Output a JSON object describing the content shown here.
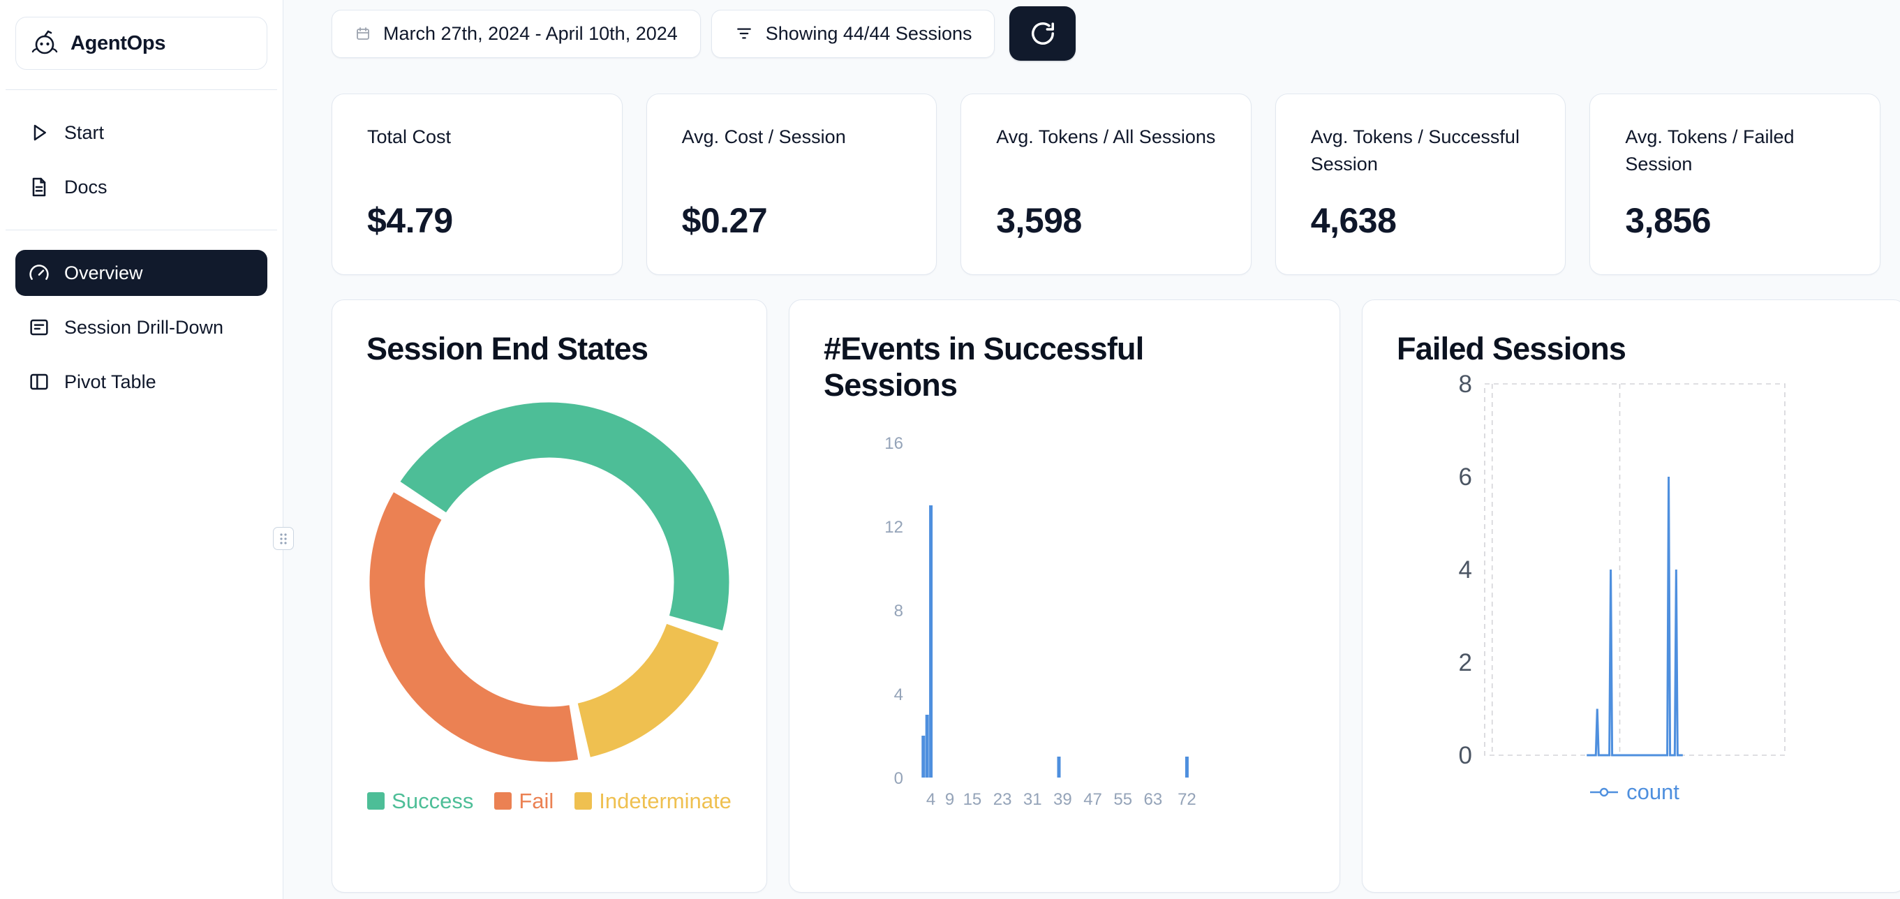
{
  "app": {
    "name": "AgentOps"
  },
  "colors": {
    "accent_dark": "#111a2c",
    "success_green": "#4dbe97",
    "fail_orange": "#eb8153",
    "indeterminate_yellow": "#efc050",
    "chart_blue": "#4e8fde",
    "card_border": "#e2e8f0",
    "page_bg": "#f8fafc"
  },
  "sidebar": {
    "nav_top": [
      {
        "label": "Start"
      },
      {
        "label": "Docs"
      }
    ],
    "nav_main": [
      {
        "label": "Overview",
        "active": true
      },
      {
        "label": "Session Drill-Down",
        "active": false
      },
      {
        "label": "Pivot Table",
        "active": false
      }
    ]
  },
  "toolbar": {
    "date_range": "March 27th, 2024 - April 10th, 2024",
    "sessions_filter": "Showing 44/44 Sessions"
  },
  "stats": [
    {
      "label": "Total Cost",
      "value": "$4.79"
    },
    {
      "label": "Avg. Cost / Session",
      "value": "$0.27"
    },
    {
      "label": "Avg. Tokens / All Sessions",
      "value": "3,598"
    },
    {
      "label": "Avg. Tokens / Successful Session",
      "value": "4,638"
    },
    {
      "label": "Avg. Tokens / Failed Session",
      "value": "3,856"
    }
  ],
  "chart_data": [
    {
      "type": "pie",
      "title": "Session End States",
      "labels": [
        "Success",
        "Fail",
        "Indeterminate"
      ],
      "values_pct": [
        46,
        37,
        17
      ],
      "colors": [
        "#4dbe97",
        "#eb8153",
        "#efc050"
      ],
      "donut": true,
      "start_angle_deg": 302,
      "draw_order": [
        0,
        2,
        1
      ],
      "legend_position": "bottom"
    },
    {
      "type": "bar",
      "title": "#Events in Successful Sessions",
      "xlabel_ticks": [
        4,
        9,
        15,
        23,
        31,
        39,
        47,
        55,
        63,
        72
      ],
      "xmax": 76,
      "ylim": [
        0,
        16
      ],
      "yticks": [
        0,
        4,
        8,
        12,
        16
      ],
      "bars": [
        {
          "x": 2,
          "count": 2
        },
        {
          "x": 3,
          "count": 3
        },
        {
          "x": 4,
          "count": 13
        },
        {
          "x": 38,
          "count": 1
        },
        {
          "x": 72,
          "count": 1
        }
      ],
      "bar_color": "#4e8fde",
      "grid": false
    },
    {
      "type": "line",
      "title": "Failed Sessions",
      "ylim": [
        0,
        8
      ],
      "yticks": [
        0,
        2,
        4,
        6,
        8
      ],
      "gridlines_x": [
        0.025,
        0.45
      ],
      "series": [
        {
          "name": "count",
          "color": "#4e8fde",
          "baseline": [
            0.34,
            0.66
          ],
          "spikes": [
            {
              "x": 0.375,
              "y": 1
            },
            {
              "x": 0.42,
              "y": 4
            },
            {
              "x": 0.613,
              "y": 6
            },
            {
              "x": 0.638,
              "y": 4
            }
          ]
        }
      ],
      "legend": [
        "count"
      ],
      "legend_position": "bottom"
    }
  ]
}
